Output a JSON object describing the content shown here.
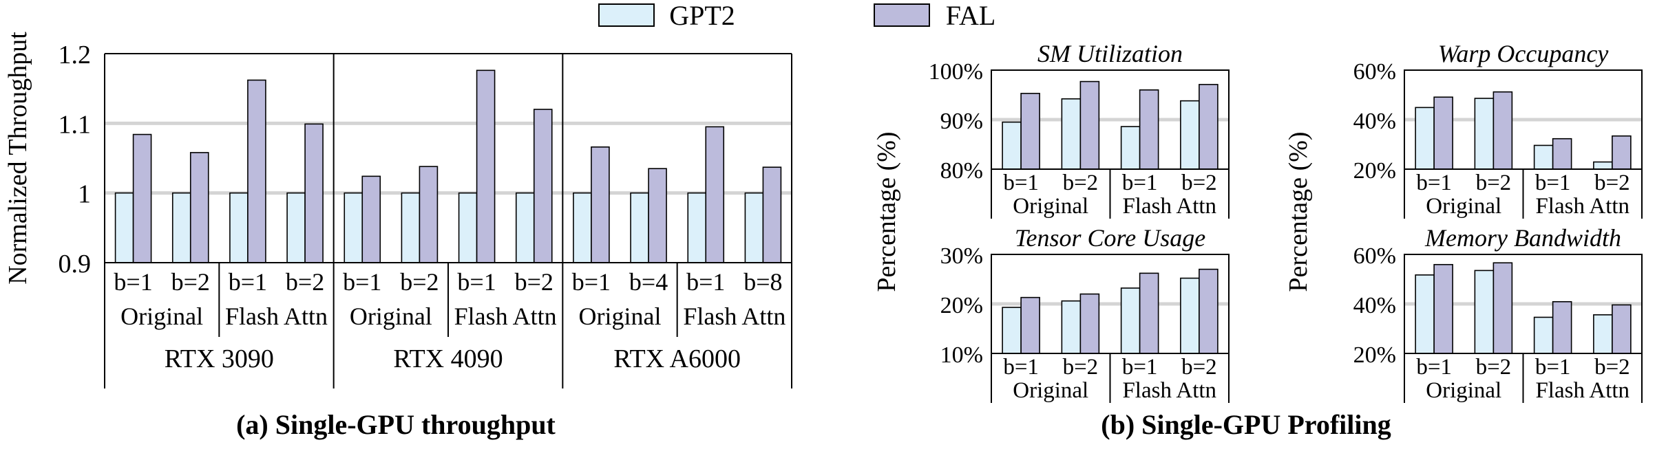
{
  "legend": [
    {
      "name": "GPT2",
      "color": "#dcf0fa"
    },
    {
      "name": "FAL",
      "color": "#bcbbdc"
    }
  ],
  "captions": {
    "a": "(a) Single-GPU throughput",
    "b": "(b) Single-GPU Profiling"
  },
  "chart_data": [
    {
      "id": "throughput",
      "type": "bar",
      "ylabel": "Normalized Throughput",
      "ylim": [
        0.9,
        1.2
      ],
      "yticks": [
        "0.9",
        "1",
        "1.1",
        "1.2"
      ],
      "grid": true,
      "groups": [
        {
          "name": "RTX 3090",
          "methods": [
            {
              "name": "Original",
              "batches": [
                "b=1",
                "b=2"
              ]
            },
            {
              "name": "Flash Attn",
              "batches": [
                "b=1",
                "b=2"
              ]
            }
          ],
          "series": [
            {
              "name": "GPT2",
              "values": [
                1.0,
                1.0,
                1.0,
                1.0
              ]
            },
            {
              "name": "FAL",
              "values": [
                1.084,
                1.058,
                1.162,
                1.099
              ]
            }
          ]
        },
        {
          "name": "RTX 4090",
          "methods": [
            {
              "name": "Original",
              "batches": [
                "b=1",
                "b=2"
              ]
            },
            {
              "name": "Flash Attn",
              "batches": [
                "b=1",
                "b=2"
              ]
            }
          ],
          "series": [
            {
              "name": "GPT2",
              "values": [
                1.0,
                1.0,
                1.0,
                1.0
              ]
            },
            {
              "name": "FAL",
              "values": [
                1.024,
                1.038,
                1.176,
                1.12
              ]
            }
          ]
        },
        {
          "name": "RTX A6000",
          "methods": [
            {
              "name": "Original",
              "batches": [
                "b=1",
                "b=4"
              ]
            },
            {
              "name": "Flash Attn",
              "batches": [
                "b=1",
                "b=8"
              ]
            }
          ],
          "series": [
            {
              "name": "GPT2",
              "values": [
                1.0,
                1.0,
                1.0,
                1.0
              ]
            },
            {
              "name": "FAL",
              "values": [
                1.066,
                1.035,
                1.095,
                1.037
              ]
            }
          ]
        }
      ]
    },
    {
      "id": "sm",
      "type": "bar",
      "title": "SM Utilization",
      "ylim": [
        80,
        100
      ],
      "yticks": [
        "80%",
        "90%",
        "100%"
      ],
      "grid": true,
      "methods": [
        {
          "name": "Original",
          "batches": [
            "b=1",
            "b=2"
          ]
        },
        {
          "name": "Flash Attn",
          "batches": [
            "b=1",
            "b=2"
          ]
        }
      ],
      "series": [
        {
          "name": "GPT2",
          "values": [
            89.5,
            94.2,
            88.6,
            93.8
          ]
        },
        {
          "name": "FAL",
          "values": [
            95.3,
            97.7,
            96.0,
            97.1
          ]
        }
      ]
    },
    {
      "id": "warp",
      "type": "bar",
      "title": "Warp Occupancy",
      "ylim": [
        20,
        60
      ],
      "yticks": [
        "20%",
        "40%",
        "60%"
      ],
      "grid": true,
      "methods": [
        {
          "name": "Original",
          "batches": [
            "b=1",
            "b=2"
          ]
        },
        {
          "name": "Flash Attn",
          "batches": [
            "b=1",
            "b=2"
          ]
        }
      ],
      "series": [
        {
          "name": "GPT2",
          "values": [
            44.9,
            48.6,
            29.6,
            22.9
          ]
        },
        {
          "name": "FAL",
          "values": [
            49.1,
            51.2,
            32.3,
            33.4
          ]
        }
      ]
    },
    {
      "id": "tensor",
      "type": "bar",
      "title": "Tensor Core Usage",
      "ylim": [
        10,
        30
      ],
      "yticks": [
        "10%",
        "20%",
        "30%"
      ],
      "grid": true,
      "methods": [
        {
          "name": "Original",
          "batches": [
            "b=1",
            "b=2"
          ]
        },
        {
          "name": "Flash Attn",
          "batches": [
            "b=1",
            "b=2"
          ]
        }
      ],
      "series": [
        {
          "name": "GPT2",
          "values": [
            19.3,
            20.6,
            23.2,
            25.2
          ]
        },
        {
          "name": "FAL",
          "values": [
            21.3,
            22.0,
            26.2,
            27.0
          ]
        }
      ]
    },
    {
      "id": "mem",
      "type": "bar",
      "title": "Memory Bandwidth",
      "ylim": [
        20,
        60
      ],
      "yticks": [
        "20%",
        "40%",
        "60%"
      ],
      "grid": true,
      "methods": [
        {
          "name": "Original",
          "batches": [
            "b=1",
            "b=2"
          ]
        },
        {
          "name": "Flash Attn",
          "batches": [
            "b=1",
            "b=2"
          ]
        }
      ],
      "series": [
        {
          "name": "GPT2",
          "values": [
            51.7,
            53.5,
            34.6,
            35.6
          ]
        },
        {
          "name": "FAL",
          "values": [
            55.9,
            56.6,
            40.9,
            39.6
          ]
        }
      ]
    }
  ],
  "profiling_ylabel": "Percentage (%)"
}
